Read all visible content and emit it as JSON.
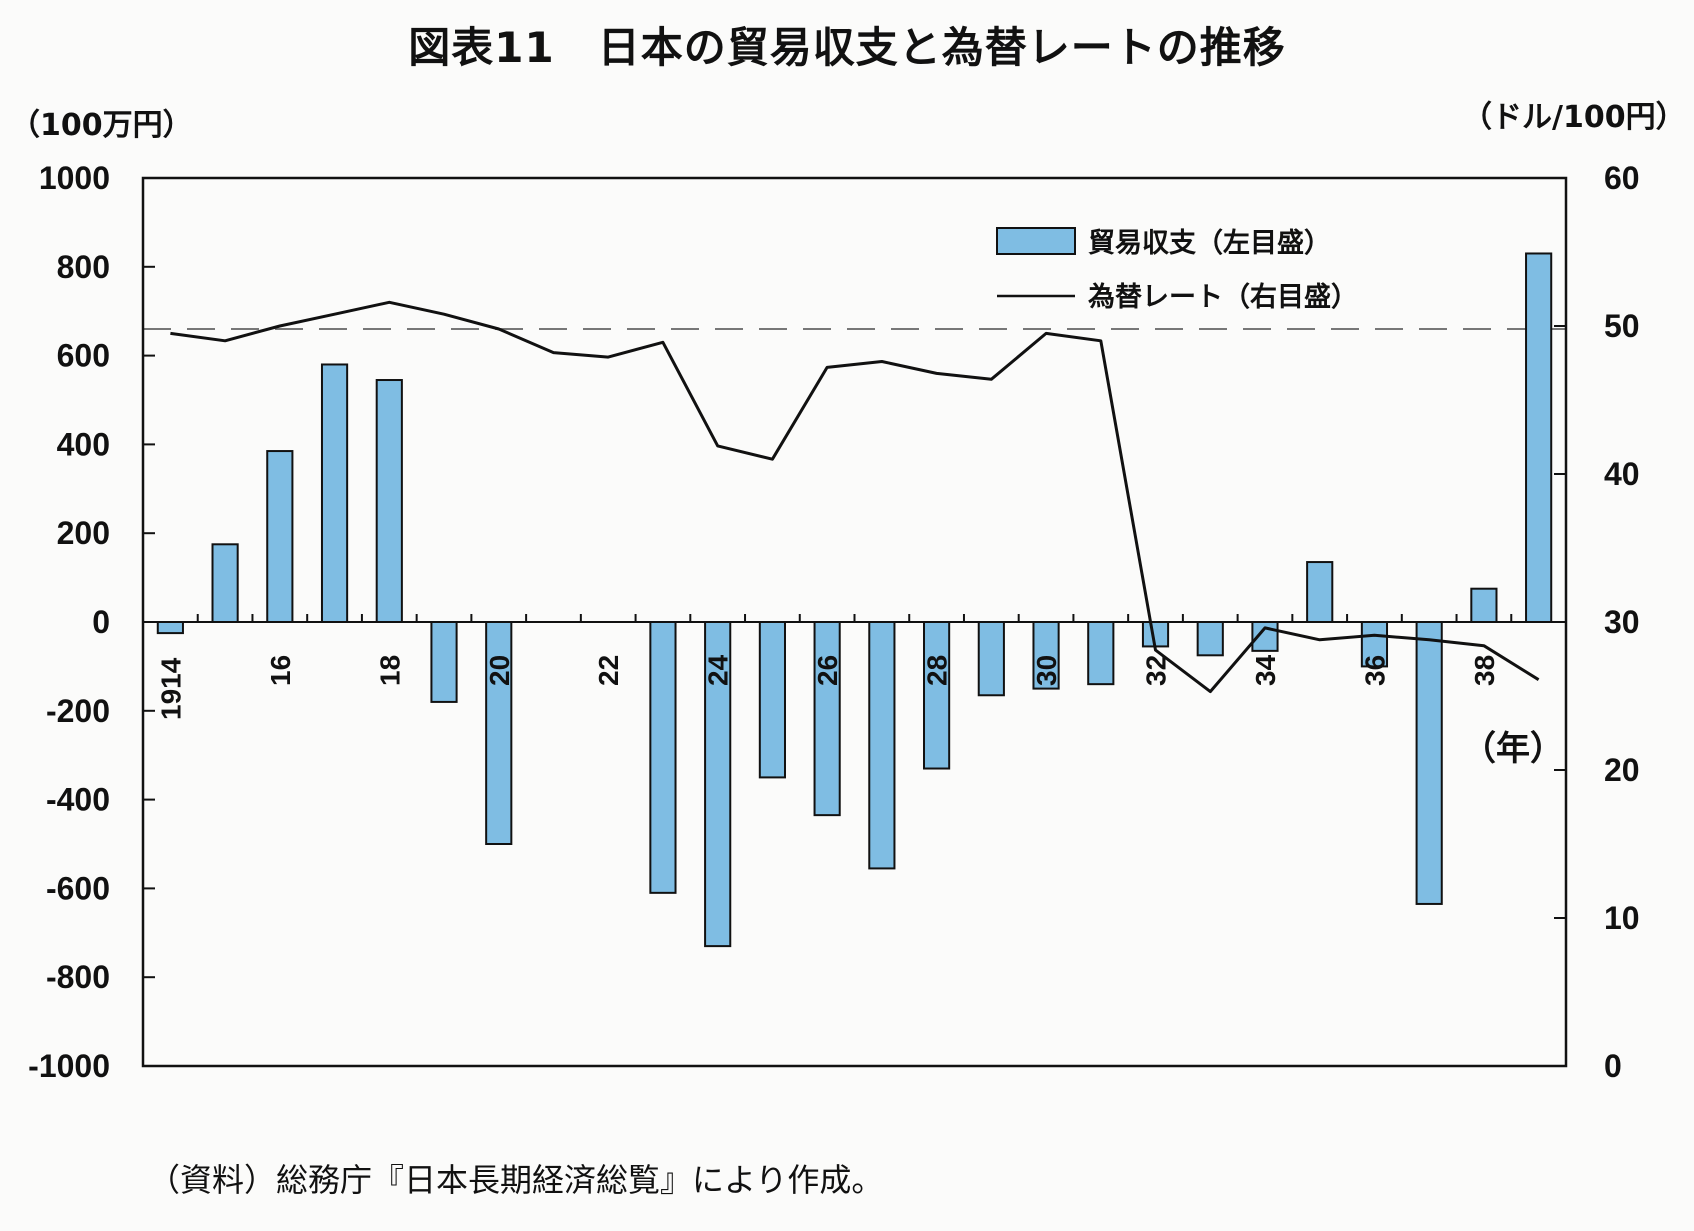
{
  "chart_data": {
    "type": "bar+line",
    "title": "図表11　日本の貿易収支と為替レートの推移",
    "y_left_unit": "（100万円）",
    "y_right_unit": "（ドル/100円）",
    "x_unit": "（年）",
    "source": "（資料）総務庁『日本長期経済総覧』により作成。",
    "x": [
      1914,
      1915,
      1916,
      1917,
      1918,
      1919,
      1920,
      1921,
      1922,
      1923,
      1924,
      1925,
      1926,
      1927,
      1928,
      1929,
      1930,
      1931,
      1932,
      1933,
      1934,
      1935,
      1936,
      1937,
      1938,
      1939
    ],
    "x_tick_labels": [
      {
        "year": 1914,
        "label": "1914"
      },
      {
        "year": 1916,
        "label": "16"
      },
      {
        "year": 1918,
        "label": "18"
      },
      {
        "year": 1920,
        "label": "20"
      },
      {
        "year": 1922,
        "label": "22"
      },
      {
        "year": 1924,
        "label": "24"
      },
      {
        "year": 1926,
        "label": "26"
      },
      {
        "year": 1928,
        "label": "28"
      },
      {
        "year": 1930,
        "label": "30"
      },
      {
        "year": 1932,
        "label": "32"
      },
      {
        "year": 1934,
        "label": "34"
      },
      {
        "year": 1936,
        "label": "36"
      },
      {
        "year": 1938,
        "label": "38"
      }
    ],
    "y_left_ticks": [
      "1000",
      "800",
      "600",
      "400",
      "200",
      "0",
      "-200",
      "-400",
      "-600",
      "-800",
      "-1000"
    ],
    "y_right_ticks": [
      "60",
      "50",
      "40",
      "30",
      "20",
      "10",
      "0"
    ],
    "ylim_left": [
      -1000,
      1000
    ],
    "ylim_right": [
      0,
      60
    ],
    "reference_line_right": 49.8,
    "grid": false,
    "legend_position": "top-right",
    "series": [
      {
        "name": "貿易収支（左目盛）",
        "type": "bar",
        "axis": "left",
        "color": "#7fbde3",
        "values": [
          -25,
          175,
          385,
          580,
          545,
          -180,
          -500,
          null,
          null,
          -610,
          -730,
          -350,
          -435,
          -555,
          -330,
          -165,
          -150,
          -140,
          -55,
          -75,
          -65,
          135,
          -100,
          -635,
          75,
          830
        ]
      },
      {
        "name": "為替レート（右目盛）",
        "type": "line",
        "axis": "right",
        "color": "#111111",
        "values": [
          49.5,
          49.0,
          50.0,
          50.8,
          51.6,
          50.8,
          49.8,
          48.2,
          47.9,
          48.9,
          41.9,
          41.0,
          47.2,
          47.6,
          46.8,
          46.4,
          49.5,
          49.0,
          28.1,
          25.3,
          29.6,
          28.8,
          29.1,
          28.8,
          28.4,
          26.1
        ]
      }
    ]
  }
}
